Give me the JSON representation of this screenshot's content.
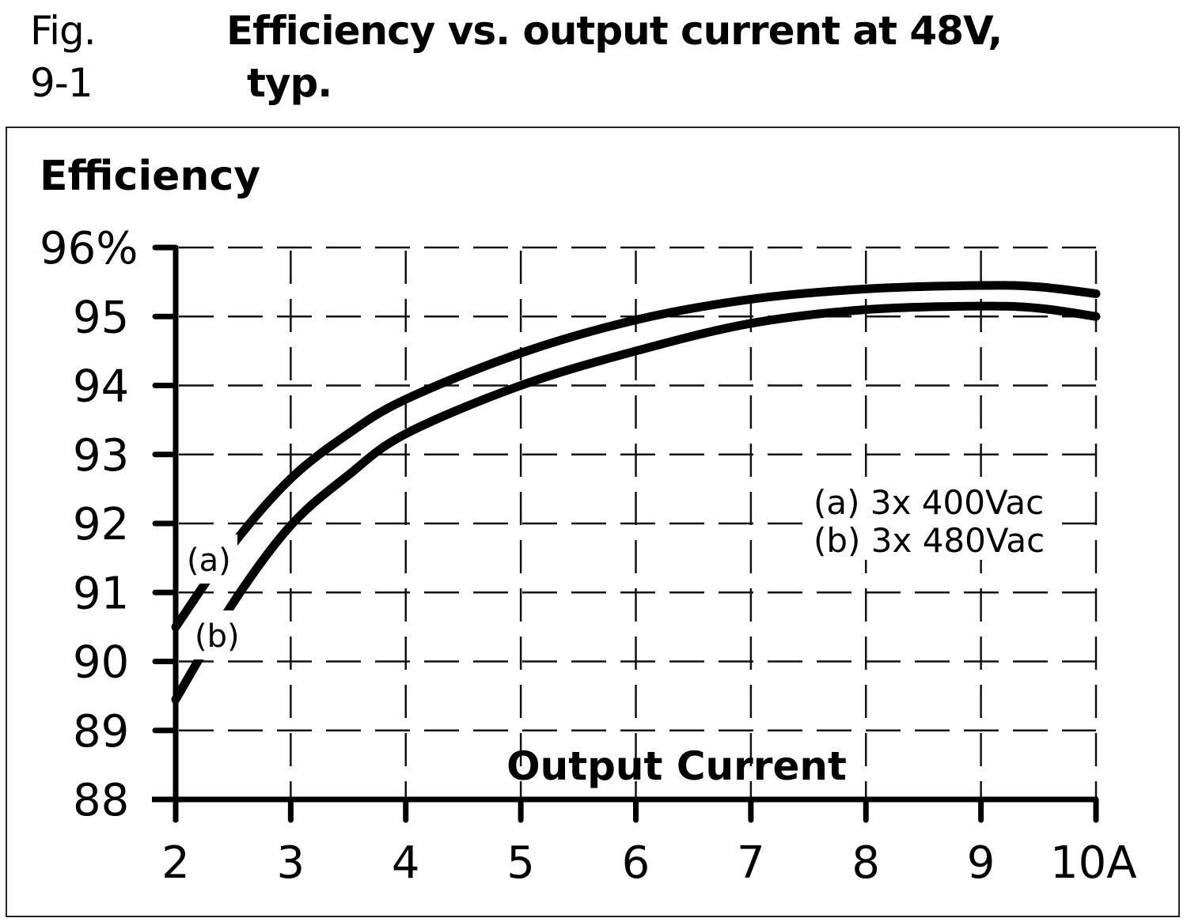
{
  "figure": {
    "number": "Fig. 9-1",
    "title_line1": "Efficiency vs. output current at 48V,",
    "title_line2": "typ."
  },
  "chart_data": {
    "type": "line",
    "title": "Efficiency vs. output current at 48V, typ.",
    "xlabel": "Output Current",
    "ylabel": "Efficiency",
    "x_unit": "A",
    "y_unit": "%",
    "xlim": [
      2,
      10
    ],
    "ylim": [
      88,
      96
    ],
    "x_ticks": [
      "2",
      "3",
      "4",
      "5",
      "6",
      "7",
      "8",
      "9",
      "10A"
    ],
    "y_ticks": [
      "96%",
      "95",
      "94",
      "93",
      "92",
      "91",
      "90",
      "89",
      "88"
    ],
    "grid": "dashed",
    "legend_position": "right-middle inside plot",
    "x": [
      2,
      2.5,
      3,
      3.5,
      4,
      5,
      6,
      7,
      8,
      9,
      9.5,
      10
    ],
    "series": [
      {
        "name": "(a) 3x 400Vac",
        "label": "(a)",
        "values": [
          90.5,
          91.7,
          92.65,
          93.3,
          93.8,
          94.47,
          94.95,
          95.25,
          95.4,
          95.45,
          95.43,
          95.33
        ]
      },
      {
        "name": "(b) 3x 480Vac",
        "label": "(b)",
        "values": [
          89.45,
          90.85,
          91.97,
          92.7,
          93.3,
          94.0,
          94.5,
          94.9,
          95.1,
          95.15,
          95.12,
          95.0
        ]
      }
    ]
  },
  "legend": {
    "a": "(a) 3x 400Vac",
    "b": "(b) 3x 480Vac"
  },
  "curve_labels": {
    "a": "(a)",
    "b": "(b)"
  }
}
